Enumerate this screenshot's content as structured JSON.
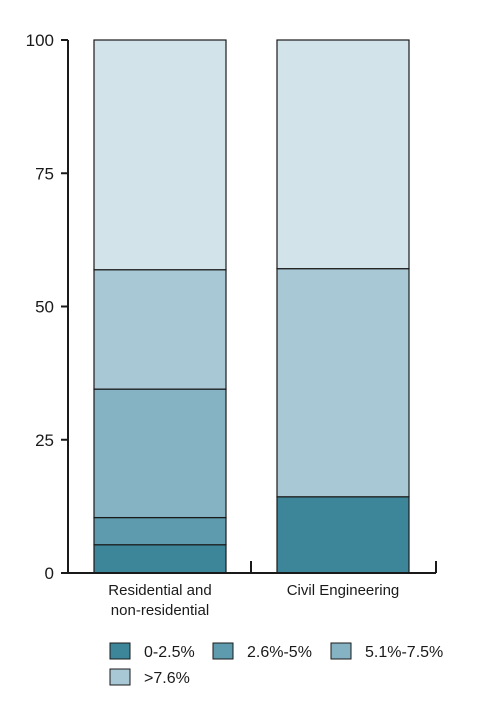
{
  "chart_data": {
    "type": "bar",
    "stacked": true,
    "categories": [
      [
        "Residential and",
        "non-residential"
      ],
      [
        "Civil Engineering"
      ]
    ],
    "series": [
      {
        "name": "0-2.5%",
        "values": [
          5.3,
          14.3
        ],
        "color": "#3d8599"
      },
      {
        "name": "2.6%-5%",
        "values": [
          5.1,
          0
        ],
        "color": "#5f9baf"
      },
      {
        "name": "5.1%-7.5%",
        "values": [
          24.1,
          0
        ],
        "color": "#86b3c3"
      },
      {
        "name": ">7.6%",
        "values": [
          22.4,
          42.8
        ],
        "color": "#a9c8d5"
      },
      {
        "name": "",
        "values": [
          43.1,
          42.9
        ],
        "color": "#d2e3ea"
      }
    ],
    "yticks": [
      0,
      25,
      50,
      75,
      100
    ],
    "ylim": [
      0,
      100
    ],
    "title": "",
    "xlabel": "",
    "ylabel": "",
    "legend_position": "bottom",
    "grid": false
  }
}
